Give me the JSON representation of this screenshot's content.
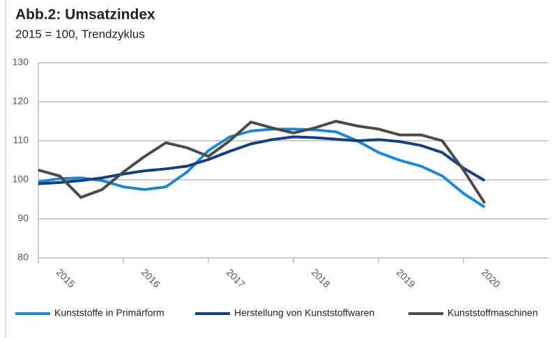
{
  "chart_data": {
    "type": "line",
    "title": "Abb.2: Umsatzindex",
    "subtitle": "2015 = 100, Trendzyklus",
    "categories": [
      null,
      "2015",
      null,
      null,
      null,
      "2016",
      null,
      null,
      null,
      "2017",
      null,
      null,
      null,
      "2018",
      null,
      null,
      null,
      "2019",
      null,
      null,
      null,
      "2020"
    ],
    "series": [
      {
        "name": "Kunststoffe in Primärform",
        "color": "#1f88d1",
        "values": [
          99.5,
          100.3,
          100.5,
          99.8,
          98.2,
          97.5,
          98.2,
          102,
          107.5,
          111,
          112.5,
          113,
          113,
          112.8,
          112.3,
          110,
          107,
          105,
          103.5,
          101,
          96.5,
          93
        ]
      },
      {
        "name": "Herstellung von Kunststoffwaren",
        "color": "#173f7f",
        "values": [
          99,
          99.3,
          99.8,
          100.5,
          101.5,
          102.3,
          102.8,
          103.5,
          105.2,
          107.3,
          109.2,
          110.3,
          111,
          110.8,
          110.4,
          110,
          110.3,
          109.8,
          108.8,
          107,
          103,
          99.8
        ]
      },
      {
        "name": "Kunststoffmaschinen",
        "color": "#4a4a4a",
        "values": [
          102.5,
          101,
          95.5,
          97.5,
          102,
          106,
          109.5,
          108.2,
          106,
          110,
          114.8,
          113.3,
          112,
          113.3,
          115,
          113.8,
          113,
          111.5,
          111.5,
          110,
          102.5,
          94
        ]
      }
    ],
    "ylim": [
      80,
      130
    ],
    "yticks": [
      80,
      90,
      100,
      110,
      120,
      130
    ],
    "grid": true
  }
}
